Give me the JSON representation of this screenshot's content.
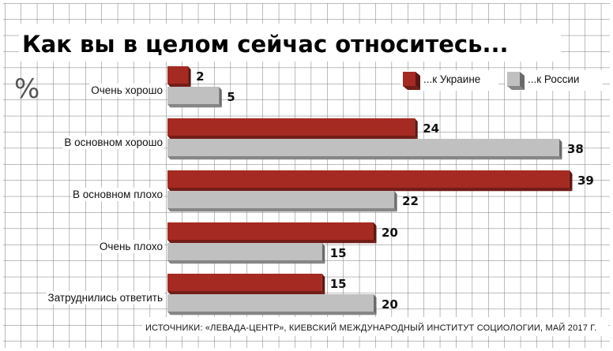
{
  "chart_data": {
    "type": "bar",
    "orientation": "horizontal",
    "title": "Как вы в целом сейчас относитесь...",
    "unit_label": "%",
    "categories": [
      "Очень хорошо",
      "В основном хорошо",
      "В основном плохо",
      "Очень плохо",
      "Затруднились ответить"
    ],
    "series": [
      {
        "name": "...к Украине",
        "color": "#a52a22",
        "values": [
          2,
          24,
          39,
          20,
          15
        ]
      },
      {
        "name": "...к России",
        "color": "#c0c0c0",
        "values": [
          5,
          38,
          22,
          15,
          20
        ]
      }
    ],
    "xlim": [
      0,
      39
    ],
    "legend_position": "top-right",
    "grid": true,
    "source": "ИСТОЧНИКИ: «ЛЕВАДА-ЦЕНТР», КИЕВСКИЙ МЕЖДУНАРОДНЫЙ ИНСТИТУТ СОЦИОЛОГИИ, МАЙ 2017 Г."
  }
}
